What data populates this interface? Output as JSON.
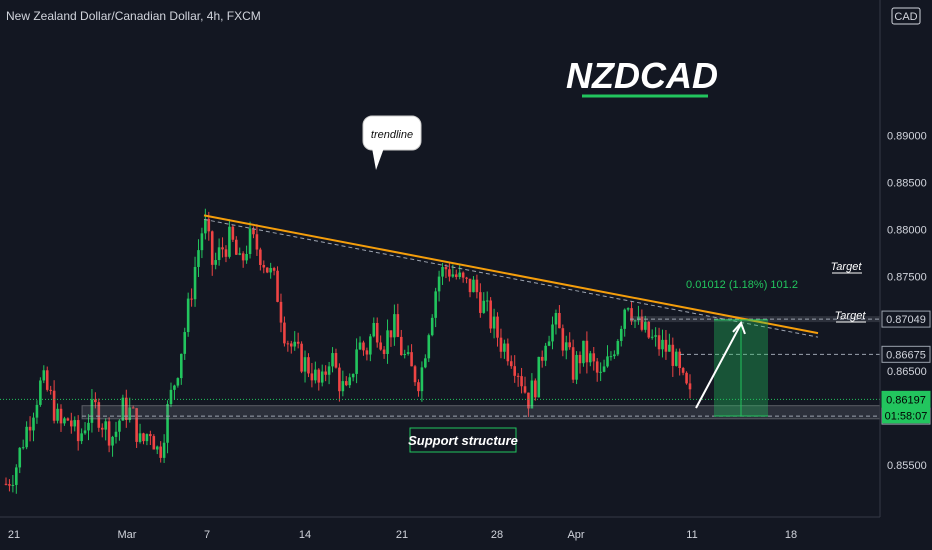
{
  "header": {
    "symbol_title": "New Zealand Dollar/Canadian Dollar, 4h, FXCM",
    "currency_badge": "CAD"
  },
  "annotations": {
    "title": "NZDCAD",
    "trendline_label": "trendline",
    "support_label": "Support structure",
    "target_label_1": "Target",
    "target_label_2": "Target",
    "measure_label": "0.01012 (1.18%) 101.2",
    "countdown": "01:58:07"
  },
  "colors": {
    "background": "#131722",
    "up_candle": "#22c55e",
    "down_candle": "#ef4444",
    "trendline": "#f59e0b",
    "accent_green": "#22c55e",
    "text": "#d1d4dc"
  },
  "chart_data": {
    "type": "candlestick",
    "title": "New Zealand Dollar/Canadian Dollar, 4h, FXCM",
    "ylim": [
      0.8515,
      0.89
    ],
    "y_ticks": [
      {
        "value": 0.855,
        "label": "0.85500"
      },
      {
        "value": 0.86,
        "label": "0.86000"
      },
      {
        "value": 0.865,
        "label": "0.86500"
      },
      {
        "value": 0.87,
        "label": "0.87000"
      },
      {
        "value": 0.875,
        "label": "0.87500"
      },
      {
        "value": 0.88,
        "label": "0.88000"
      },
      {
        "value": 0.885,
        "label": "0.88500"
      },
      {
        "value": 0.89,
        "label": "0.89000"
      }
    ],
    "x_ticks": [
      "21",
      "Mar",
      "7",
      "14",
      "21",
      "28",
      "Apr",
      "11",
      "18"
    ],
    "price_labels": [
      {
        "value": 0.87049,
        "label": "0.87049",
        "style": "target"
      },
      {
        "value": 0.86675,
        "label": "0.86675",
        "style": "target"
      },
      {
        "value": 0.86197,
        "label": "0.86197",
        "style": "last"
      },
      {
        "value": 0.86019,
        "label": "0.86019",
        "style": "support"
      }
    ],
    "close_path": [
      0.853,
      0.8545,
      0.858,
      0.861,
      0.864,
      0.862,
      0.859,
      0.86,
      0.8575,
      0.86,
      0.861,
      0.859,
      0.858,
      0.861,
      0.8605,
      0.857,
      0.859,
      0.856,
      0.861,
      0.865,
      0.87,
      0.876,
      0.881,
      0.876,
      0.878,
      0.879,
      0.876,
      0.879,
      0.878,
      0.876,
      0.874,
      0.869,
      0.867,
      0.866,
      0.865,
      0.863,
      0.867,
      0.864,
      0.862,
      0.868,
      0.867,
      0.87,
      0.868,
      0.87,
      0.867,
      0.865,
      0.864,
      0.87,
      0.875,
      0.876,
      0.875,
      0.874,
      0.874,
      0.872,
      0.87,
      0.868,
      0.867,
      0.865,
      0.862,
      0.864,
      0.869,
      0.87,
      0.868,
      0.865,
      0.867,
      0.866,
      0.864,
      0.866,
      0.869,
      0.873,
      0.87,
      0.869,
      0.868,
      0.8675,
      0.867,
      0.864,
      0.862
    ],
    "trendline": {
      "from": {
        "index": 22,
        "value": 0.8815
      },
      "to": {
        "index": 92,
        "value": 0.8695
      }
    },
    "support_zone": {
      "low": 0.8599,
      "high": 0.8613
    },
    "projection": {
      "start_value": 0.8602,
      "end_value": 0.8704,
      "change": "0.01012",
      "percent": "1.18%"
    }
  }
}
